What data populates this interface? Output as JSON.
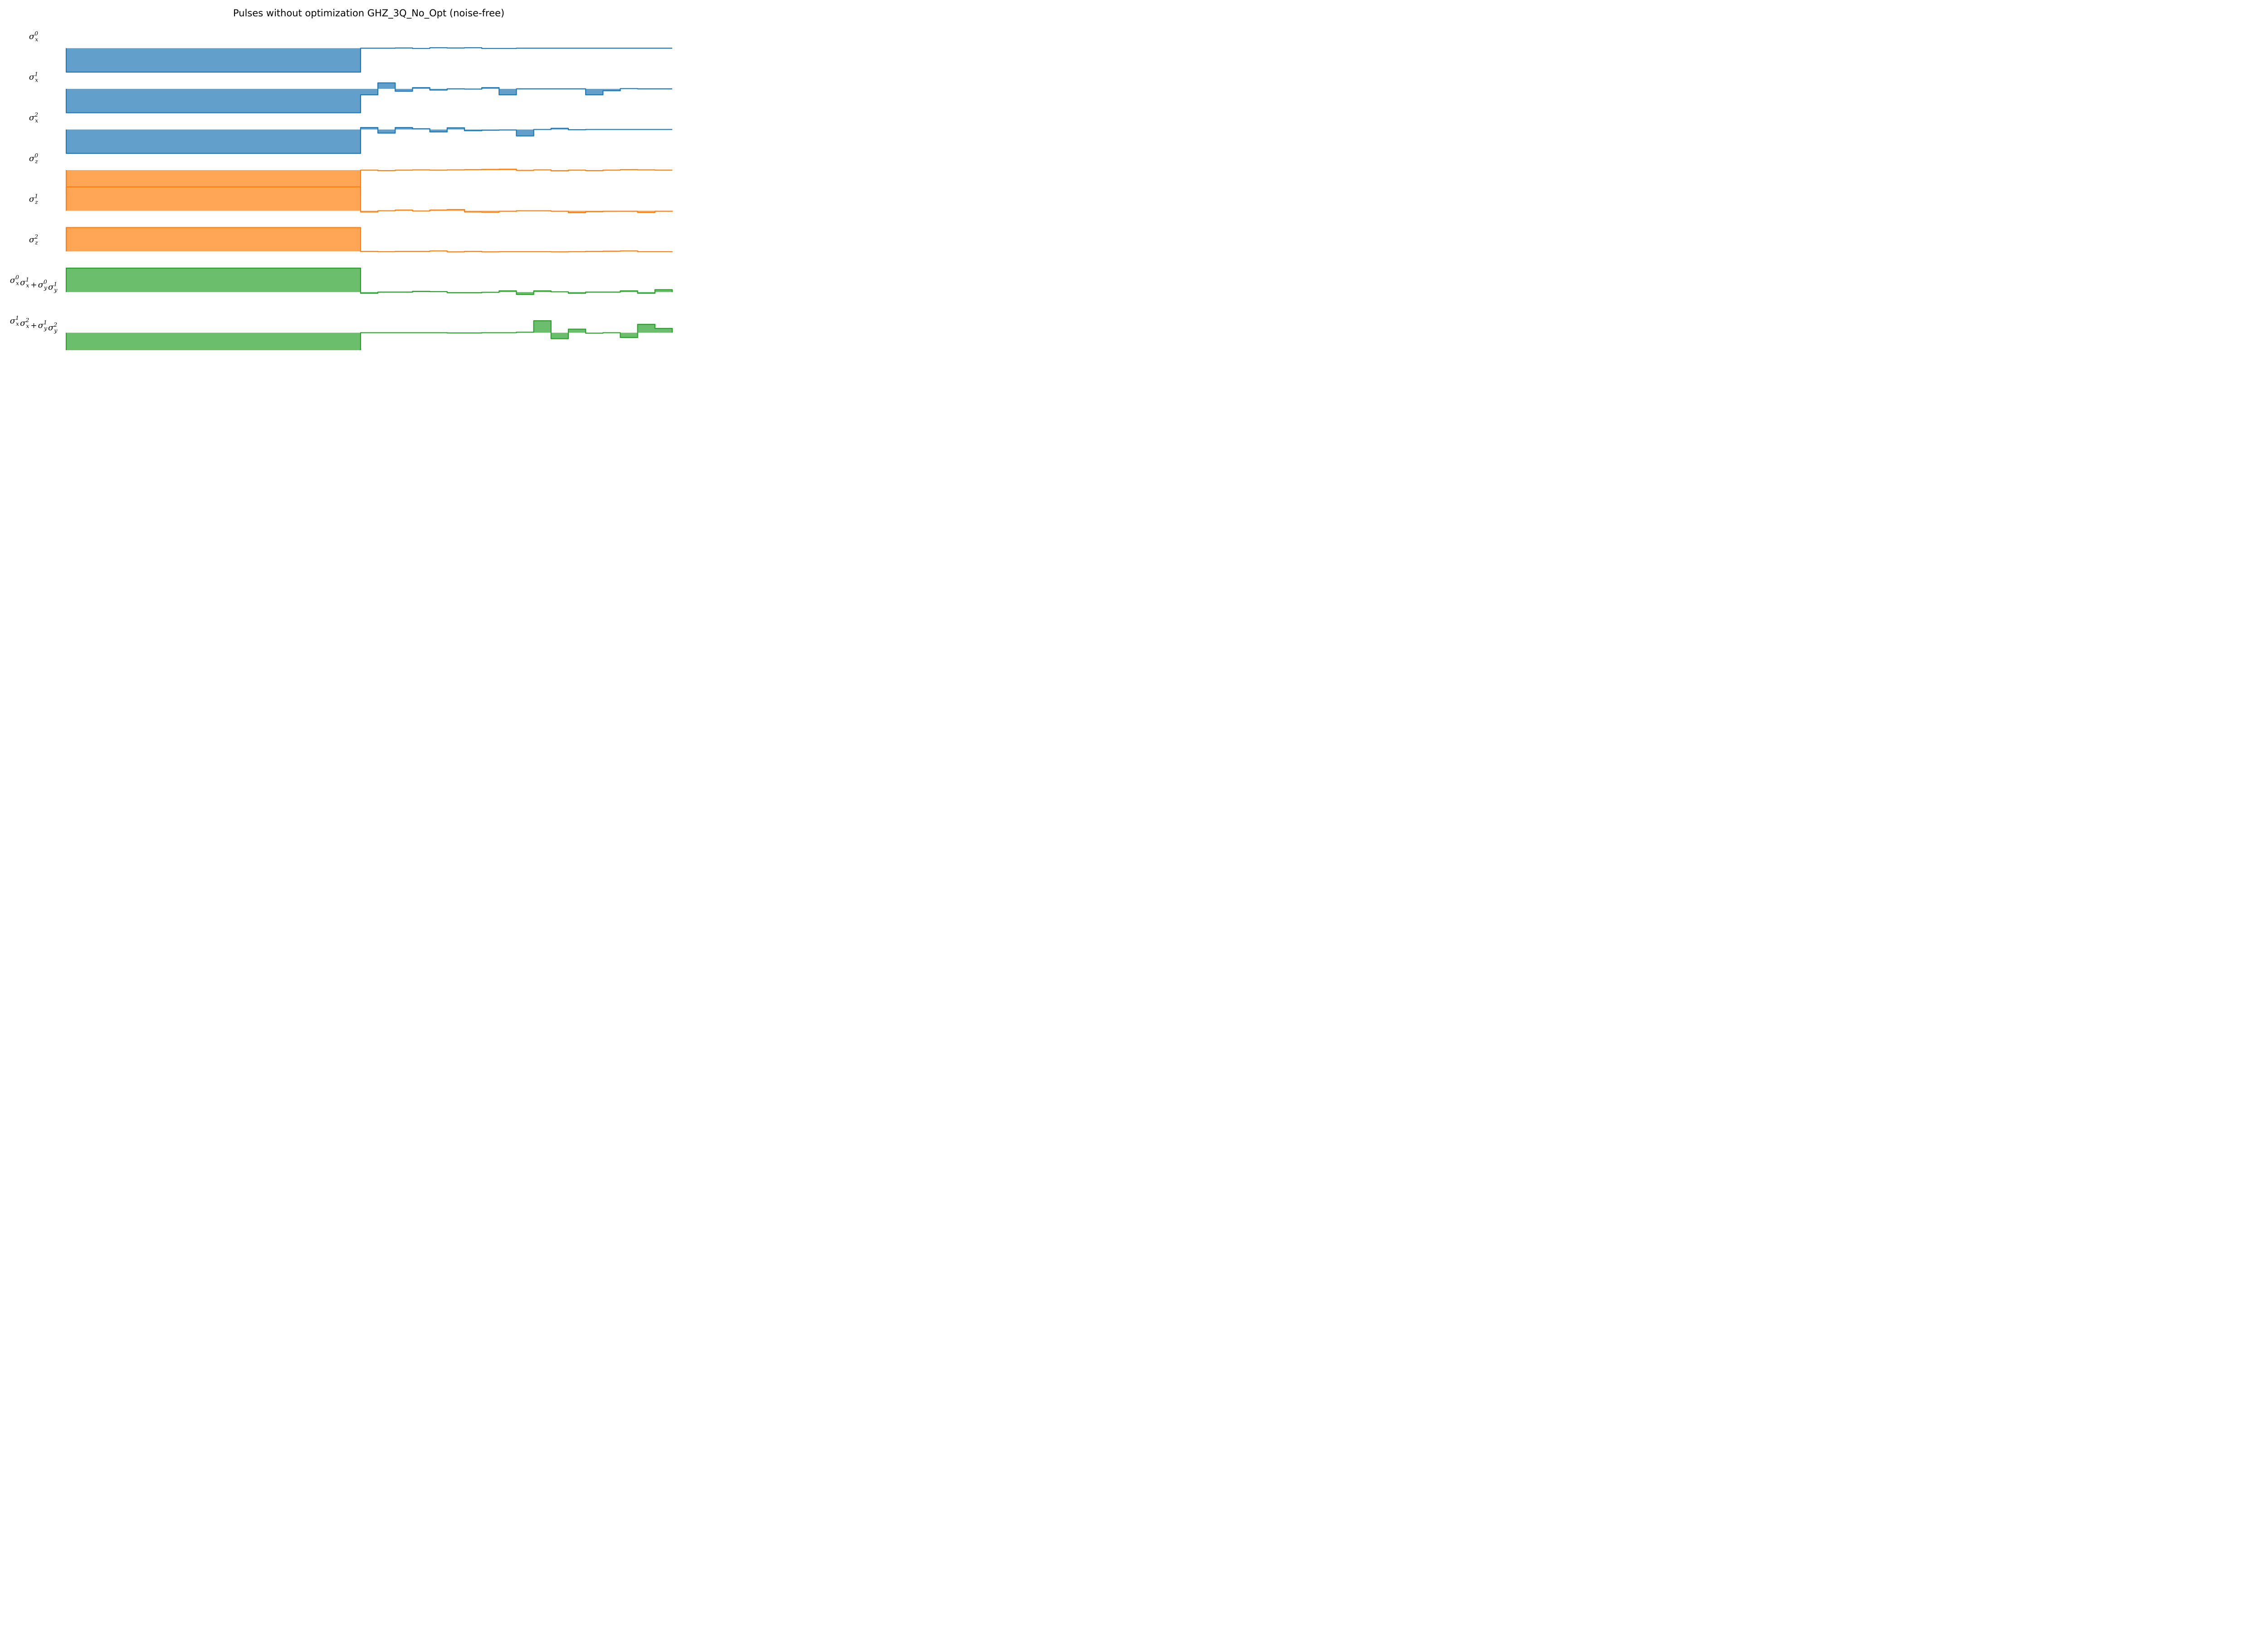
{
  "figure": {
    "title": "Pulses without optimization GHZ_3Q_No_Opt (noise-free)"
  },
  "chart_data": {
    "type": "area",
    "title": "Pulses without optimization GHZ_3Q_No_Opt (noise-free)",
    "xlabel": "",
    "ylabel": "",
    "grid": false,
    "legend": "none",
    "x": [
      0,
      1,
      2,
      3,
      4,
      5,
      6,
      7,
      8,
      9,
      10,
      11,
      12,
      13,
      14,
      15,
      16,
      17,
      18,
      19,
      20,
      21,
      22,
      23,
      24,
      25,
      26,
      27,
      28,
      29,
      30,
      31,
      32,
      33,
      34
    ],
    "panel_ylim": [
      -1.05,
      0.65
    ],
    "series": [
      {
        "label_parts": [
          "σ",
          "x",
          "0"
        ],
        "color": "#1f77b4",
        "fill": "#62a0cb",
        "values": [
          -1,
          -1,
          -1,
          -1,
          -1,
          -1,
          -1,
          -1,
          -1,
          -1,
          -1,
          -1,
          -1,
          -1,
          -1,
          -1,
          -1,
          0,
          0,
          0.01,
          -0.01,
          0.02,
          0.01,
          0.02,
          -0.01,
          -0.01,
          0,
          0,
          0,
          0,
          0,
          0,
          0,
          0,
          0
        ]
      },
      {
        "label_parts": [
          "σ",
          "x",
          "1"
        ],
        "color": "#1f77b4",
        "fill": "#62a0cb",
        "values": [
          -1,
          -1,
          -1,
          -1,
          -1,
          -1,
          -1,
          -1,
          -1,
          -1,
          -1,
          -1,
          -1,
          -1,
          -1,
          -1,
          -1,
          -0.25,
          0.25,
          -0.1,
          0.05,
          -0.05,
          0,
          -0.01,
          0.05,
          -0.25,
          0,
          0,
          0,
          0,
          -0.25,
          -0.08,
          0.01,
          0,
          0
        ]
      },
      {
        "label_parts": [
          "σ",
          "x",
          "2"
        ],
        "color": "#1f77b4",
        "fill": "#62a0cb",
        "values": [
          -1,
          -1,
          -1,
          -1,
          -1,
          -1,
          -1,
          -1,
          -1,
          -1,
          -1,
          -1,
          -1,
          -1,
          -1,
          -1,
          -1,
          0.08,
          -0.15,
          0.08,
          0.03,
          -0.1,
          0.07,
          -0.05,
          -0.03,
          -0.02,
          -0.27,
          0,
          0.05,
          -0.01,
          0,
          0,
          0,
          0,
          0
        ]
      },
      {
        "label_parts": [
          "σ",
          "z",
          "0"
        ],
        "color": "#ff7f0e",
        "fill": "#ffa556",
        "values": [
          -1,
          -1,
          -1,
          -1,
          -1,
          -1,
          -1,
          -1,
          -1,
          -1,
          -1,
          -1,
          -1,
          -1,
          -1,
          -1,
          -1,
          0,
          -0.02,
          0,
          0.01,
          0,
          0.01,
          0.02,
          0.03,
          0.04,
          -0.01,
          0.01,
          -0.03,
          0,
          -0.02,
          0,
          0.02,
          0.01,
          0
        ]
      },
      {
        "label_parts": [
          "σ",
          "z",
          "1"
        ],
        "color": "#ff7f0e",
        "fill": "#ffa556",
        "values": [
          1,
          1,
          1,
          1,
          1,
          1,
          1,
          1,
          1,
          1,
          1,
          1,
          1,
          1,
          1,
          1,
          1,
          -0.05,
          0,
          0.03,
          -0.01,
          0.03,
          0.05,
          -0.05,
          -0.06,
          -0.02,
          0,
          0,
          -0.02,
          -0.08,
          -0.04,
          -0.02,
          -0.02,
          -0.07,
          -0.02
        ]
      },
      {
        "label_parts": [
          "σ",
          "z",
          "2"
        ],
        "color": "#ff7f0e",
        "fill": "#ffa556",
        "values": [
          1,
          1,
          1,
          1,
          1,
          1,
          1,
          1,
          1,
          1,
          1,
          1,
          1,
          1,
          1,
          1,
          1,
          0,
          -0.01,
          0,
          0,
          0.02,
          -0.02,
          0,
          -0.02,
          -0.01,
          -0.01,
          -0.01,
          -0.02,
          -0.01,
          0,
          0.01,
          0.02,
          -0.01,
          -0.01
        ]
      },
      {
        "label_parts": [
          "σ",
          "x",
          "0",
          "σ",
          "x",
          "1",
          "+",
          "σ",
          "y",
          "0",
          "σ",
          "y",
          "1"
        ],
        "color": "#2ca02c",
        "fill": "#6bbe6b",
        "values": [
          1,
          1,
          1,
          1,
          1,
          1,
          1,
          1,
          1,
          1,
          1,
          1,
          1,
          1,
          1,
          1,
          1,
          -0.05,
          0,
          0,
          0.03,
          0.02,
          -0.03,
          -0.03,
          -0.01,
          0.05,
          -0.1,
          0.05,
          0.01,
          -0.05,
          0,
          0,
          0.05,
          -0.05,
          0.1
        ]
      },
      {
        "label_parts": [
          "σ",
          "x",
          "1",
          "σ",
          "x",
          "2",
          "+",
          "σ",
          "y",
          "1",
          "σ",
          "y",
          "2"
        ],
        "color": "#2ca02c",
        "fill": "#6bbe6b",
        "values": [
          -1,
          -1,
          -1,
          -1,
          -1,
          -1,
          -1,
          -1,
          -1,
          -1,
          -1,
          -1,
          -1,
          -1,
          -1,
          -1,
          -1,
          0,
          0,
          0,
          0,
          0,
          -0.01,
          -0.01,
          0,
          0,
          0.02,
          0.5,
          -0.25,
          0.15,
          -0.02,
          0,
          -0.2,
          0.35,
          0.18
        ]
      }
    ]
  }
}
